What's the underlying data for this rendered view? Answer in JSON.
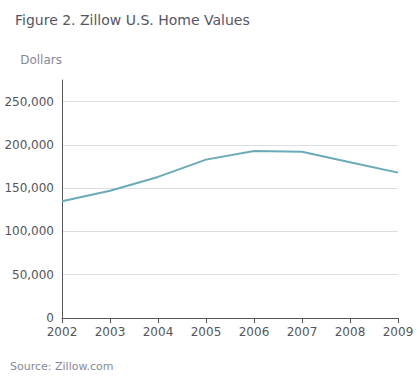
{
  "chart_data": {
    "type": "line",
    "title": "Figure 2. Zillow U.S. Home Values",
    "ylabel": "Dollars",
    "annotations": [
      "Source: Zillow.com"
    ],
    "x": [
      2002,
      2003,
      2004,
      2005,
      2006,
      2007,
      2008,
      2009
    ],
    "values": [
      135000,
      147000,
      163000,
      183000,
      193000,
      192000,
      180000,
      168000
    ],
    "color": "#6aaab8",
    "xlim": [
      2002,
      2009
    ],
    "xticks": [
      2002,
      2003,
      2004,
      2005,
      2006,
      2007,
      2008,
      2009
    ],
    "ylim": [
      0,
      275000
    ],
    "yticks": [
      0,
      {
        "value": 50000,
        "label": "50,000"
      },
      {
        "value": 100000,
        "label": "100,000"
      },
      {
        "value": 150000,
        "label": "150,000"
      },
      {
        "value": 200000,
        "label": "200,000"
      },
      {
        "value": 250000,
        "label": "250,000"
      }
    ],
    "grid": true
  }
}
